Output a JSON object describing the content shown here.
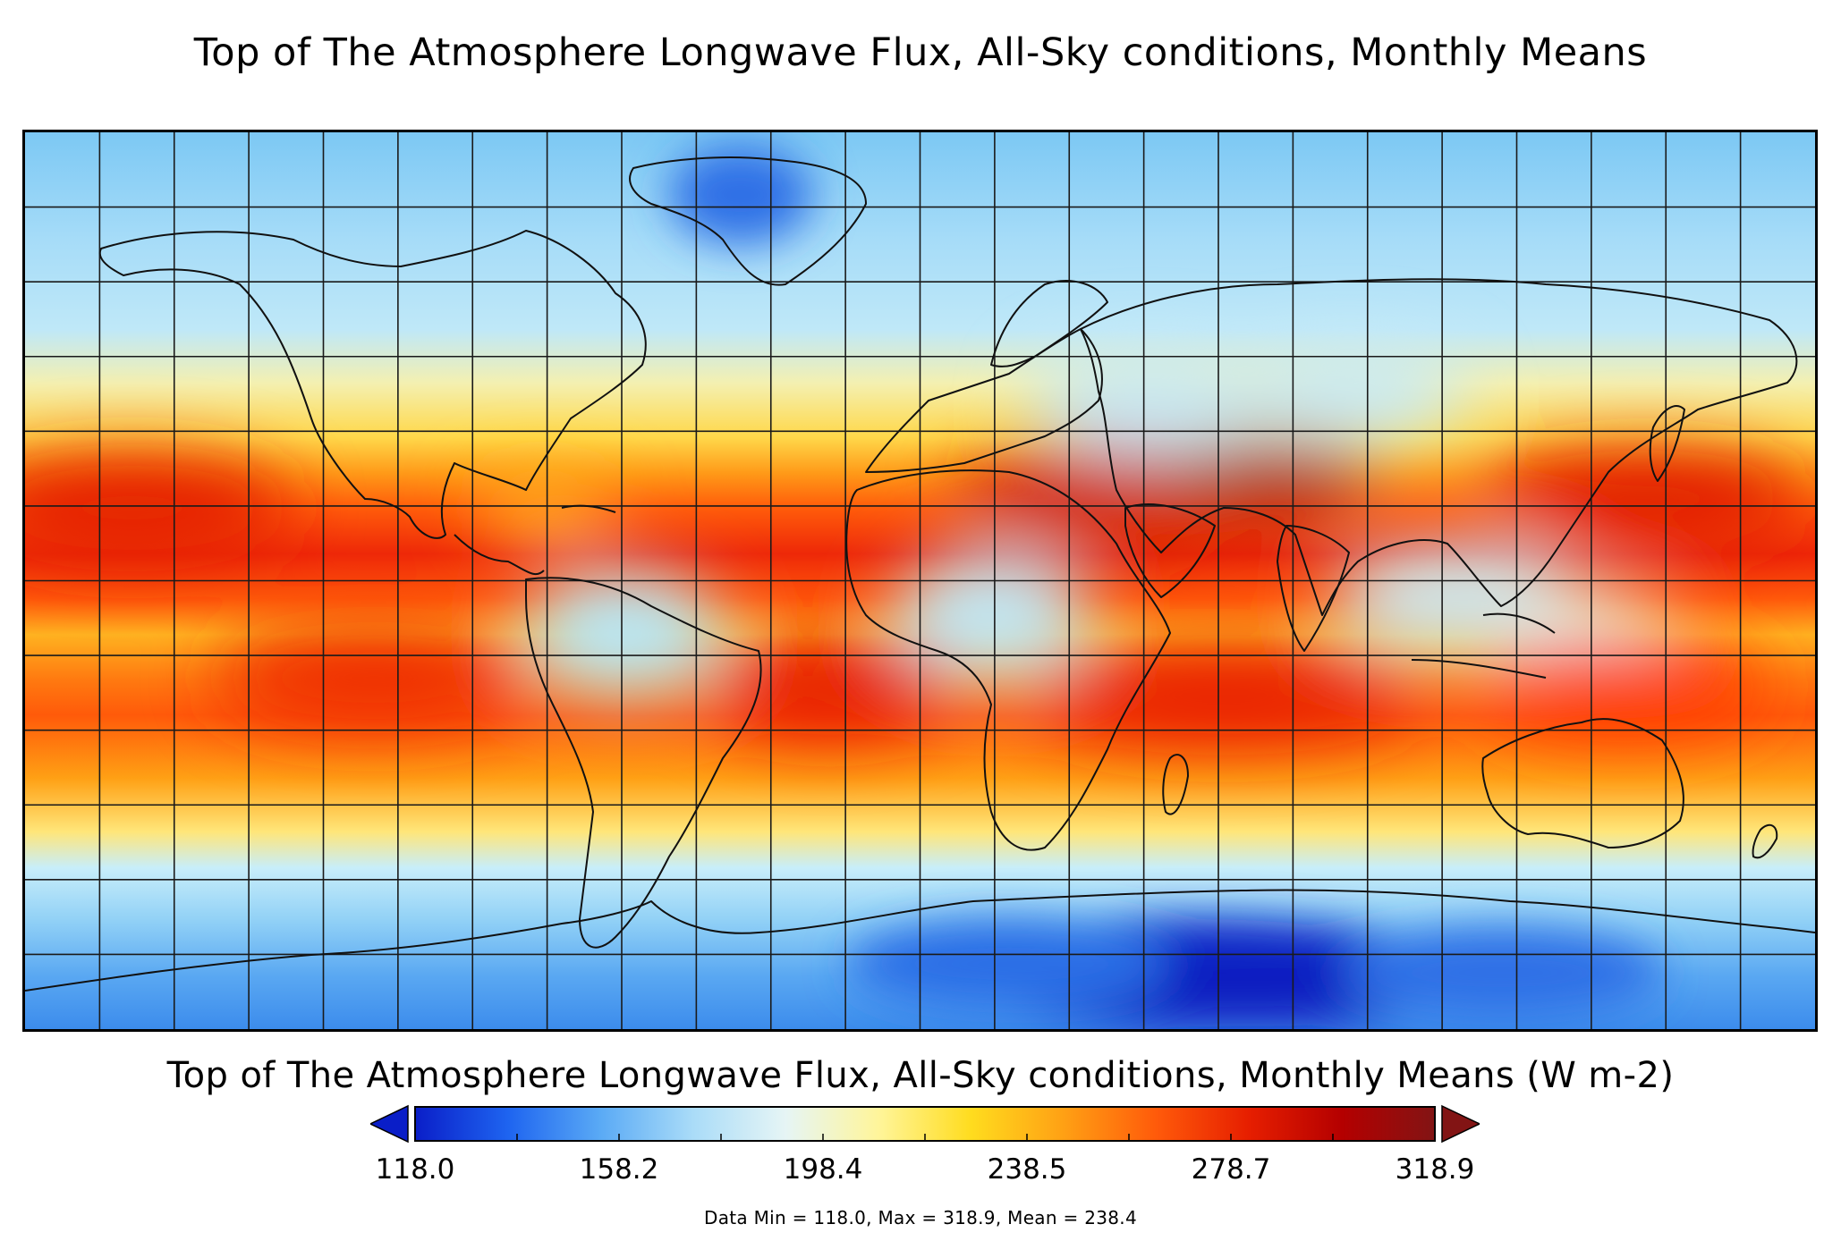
{
  "title": "Top of The Atmosphere Longwave Flux, All-Sky conditions, Monthly Means",
  "map": {
    "projection": "equirectangular",
    "grid_on": true,
    "grid_spacing_deg": 15,
    "coastlines": true
  },
  "colorbar": {
    "title": "Top of The Atmosphere Longwave Flux, All-Sky conditions, Monthly Means (W m-2)",
    "ticks": [
      "118.0",
      "158.2",
      "198.4",
      "238.5",
      "278.7",
      "318.9"
    ],
    "min": 118.0,
    "max": 318.9,
    "extend": "both",
    "colors": [
      "#0a1ec8",
      "#1e64f0",
      "#5aaaf5",
      "#aadcf8",
      "#e6f5f5",
      "#fff59a",
      "#ffdc1e",
      "#ffa014",
      "#ff5a0a",
      "#e61e00",
      "#b40000",
      "#821414"
    ]
  },
  "stats": "Data Min = 118.0, Max = 318.9, Mean = 238.4"
}
